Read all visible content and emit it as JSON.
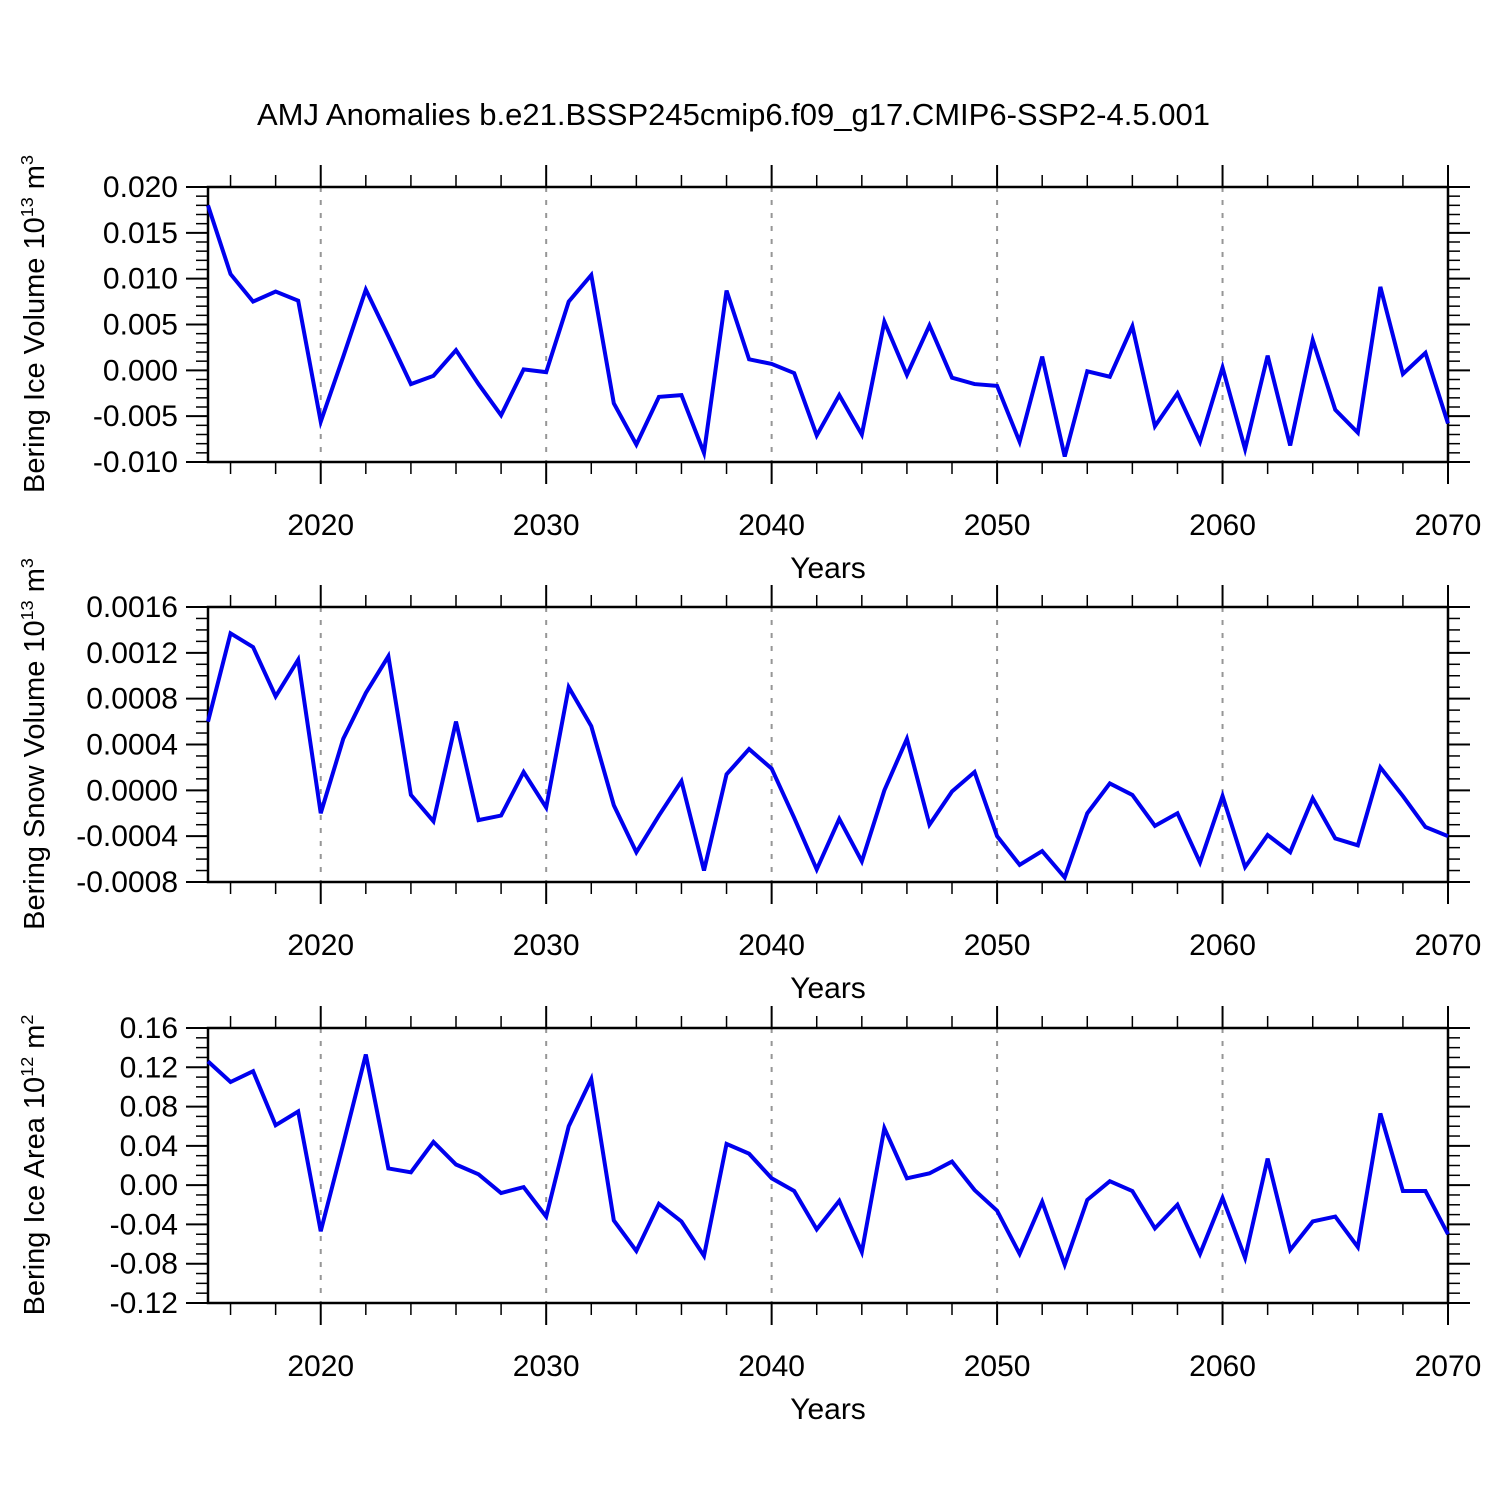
{
  "title": "AMJ Anomalies b.e21.BSSP245cmip6.f09_g17.CMIP6-SSP2-4.5.001",
  "style": {
    "line_color": "#0000ee",
    "frame_color": "#000000",
    "grid_color": "#969696",
    "tick_color": "#000000"
  },
  "chart_data": [
    {
      "type": "line",
      "name": "bering-ice-volume",
      "ylabel_base": "Bering Ice Volume 10",
      "ylabel_exp": "13",
      "ylabel_unit": " m",
      "ylabel_unit_exp": "3",
      "xlabel": "Years",
      "x_start": 2015,
      "x_end": 2070,
      "x_major_ticks": [
        2020,
        2030,
        2040,
        2050,
        2060,
        2070
      ],
      "x_minor_step": 2,
      "grid_years": [
        2020,
        2030,
        2040,
        2050,
        2060
      ],
      "ylim": [
        -0.01,
        0.02
      ],
      "y_major_step": 0.005,
      "y_minor_step": 0.001,
      "y_decimals": 3,
      "grid": "vertical-dashed",
      "legend": "none",
      "values": [
        0.018,
        0.0105,
        0.0075,
        0.0086,
        0.0076,
        -0.0056,
        0.0015,
        0.0088,
        0.0037,
        -0.0015,
        -0.0006,
        0.0022,
        -0.0015,
        -0.0049,
        0.0001,
        -0.0002,
        0.0075,
        0.0104,
        -0.0036,
        -0.0081,
        -0.0029,
        -0.0027,
        -0.009,
        0.0087,
        0.0012,
        0.0007,
        -0.0003,
        -0.0071,
        -0.0027,
        -0.007,
        0.0053,
        -0.0005,
        0.0049,
        -0.0008,
        -0.0015,
        -0.0017,
        -0.0078,
        0.0015,
        -0.0094,
        -0.0001,
        -0.0007,
        0.0048,
        -0.0061,
        -0.0025,
        -0.0078,
        0.0003,
        -0.0086,
        0.0016,
        -0.0082,
        0.0033,
        -0.0043,
        -0.0068,
        0.0091,
        -0.0004,
        0.0019,
        -0.0058
      ]
    },
    {
      "type": "line",
      "name": "bering-snow-volume",
      "ylabel_base": "Bering Snow Volume 10",
      "ylabel_exp": "13",
      "ylabel_unit": " m",
      "ylabel_unit_exp": "3",
      "xlabel": "Years",
      "x_start": 2015,
      "x_end": 2070,
      "x_major_ticks": [
        2020,
        2030,
        2040,
        2050,
        2060,
        2070
      ],
      "x_minor_step": 2,
      "grid_years": [
        2020,
        2030,
        2040,
        2050,
        2060
      ],
      "ylim": [
        -0.0008,
        0.0016
      ],
      "y_major_step": 0.0004,
      "y_minor_step": 0.0001,
      "y_decimals": 4,
      "grid": "vertical-dashed",
      "legend": "none",
      "values": [
        0.0006,
        0.00137,
        0.00125,
        0.00082,
        0.00114,
        -0.0002,
        0.00045,
        0.00085,
        0.00117,
        -4e-05,
        -0.00027,
        0.0006,
        -0.00026,
        -0.00022,
        0.00016,
        -0.00015,
        0.0009,
        0.00056,
        -0.00013,
        -0.00054,
        -0.00022,
        8e-05,
        -0.0007,
        0.00014,
        0.00036,
        0.00019,
        -0.00024,
        -0.00069,
        -0.00025,
        -0.00062,
        0.0,
        0.00045,
        -0.0003,
        -1e-05,
        0.00016,
        -0.0004,
        -0.00065,
        -0.00053,
        -0.00076,
        -0.0002,
        6e-05,
        -4e-05,
        -0.00031,
        -0.0002,
        -0.00063,
        -5e-05,
        -0.00067,
        -0.00039,
        -0.00054,
        -7e-05,
        -0.00042,
        -0.00048,
        0.0002,
        -5e-05,
        -0.00032,
        -0.0004
      ]
    },
    {
      "type": "line",
      "name": "bering-ice-area",
      "ylabel_base": "Bering Ice Area 10",
      "ylabel_exp": "12",
      "ylabel_unit": " m",
      "ylabel_unit_exp": "2",
      "xlabel": "Years",
      "x_start": 2015,
      "x_end": 2070,
      "x_major_ticks": [
        2020,
        2030,
        2040,
        2050,
        2060,
        2070
      ],
      "x_minor_step": 2,
      "grid_years": [
        2020,
        2030,
        2040,
        2050,
        2060
      ],
      "ylim": [
        -0.12,
        0.16
      ],
      "y_major_step": 0.04,
      "y_minor_step": 0.01,
      "y_decimals": 2,
      "grid": "vertical-dashed",
      "legend": "none",
      "values": [
        0.126,
        0.105,
        0.116,
        0.061,
        0.075,
        -0.047,
        0.042,
        0.133,
        0.017,
        0.013,
        0.044,
        0.021,
        0.011,
        -0.008,
        -0.002,
        -0.032,
        0.06,
        0.108,
        -0.036,
        -0.067,
        -0.019,
        -0.037,
        -0.072,
        0.042,
        0.032,
        0.007,
        -0.006,
        -0.045,
        -0.016,
        -0.068,
        0.058,
        0.007,
        0.012,
        0.024,
        -0.005,
        -0.026,
        -0.07,
        -0.017,
        -0.081,
        -0.015,
        0.004,
        -0.006,
        -0.044,
        -0.02,
        -0.07,
        -0.013,
        -0.074,
        0.027,
        -0.066,
        -0.037,
        -0.032,
        -0.063,
        0.073,
        -0.006,
        -0.006,
        -0.05
      ]
    }
  ]
}
